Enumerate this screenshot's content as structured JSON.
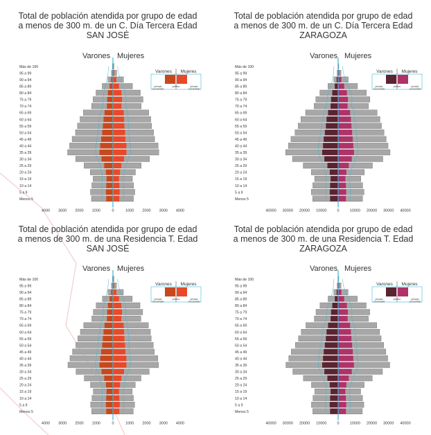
{
  "age_groups": [
    "Menos 5",
    "5 a 9",
    "10 a 14",
    "15 a 19",
    "20 a 24",
    "25 a 29",
    "30 a 34",
    "35 a 39",
    "40 a 44",
    "45 a 49",
    "50 a 54",
    "55 a 59",
    "60 a 64",
    "65 a 69",
    "70 a 74",
    "75 a 79",
    "80 a 84",
    "85 a 89",
    "90 a 94",
    "95 a 99",
    "Más de 100"
  ],
  "labels": {
    "varones": "Varones",
    "mujeres": "Mujeres",
    "privado": "privado",
    "concertado": "concertado",
    "publico": "público",
    "ticks_sj": [
      "4000",
      "3000",
      "2000",
      "1000",
      "0",
      "1000",
      "2000",
      "3000",
      "4000"
    ],
    "ticks_zg": [
      "40000",
      "30000",
      "20000",
      "10000",
      "0",
      "10000",
      "20000",
      "30000",
      "40000"
    ]
  },
  "colors": {
    "sj_male": "#c8481e",
    "sj_female": "#e8492a",
    "zg_male": "#5a2433",
    "zg_female": "#b0326a",
    "bar": "#a7a7a7",
    "bar_edge": "#6f6f6f",
    "axis": "#3cb6d3"
  },
  "chart_data": [
    {
      "type": "bar",
      "title": [
        "Total de población atendida por grupo de edad",
        "a menos de 300 m. de un C. Día Tercera Edad",
        "SAN JOSÉ"
      ],
      "xlim": [
        -4000,
        4000
      ],
      "series": [
        {
          "name": "Varones",
          "values": [
            1280,
            1340,
            1260,
            1180,
            1350,
            1720,
            2220,
            2700,
            2580,
            2430,
            2230,
            2110,
            1960,
            1760,
            1270,
            1180,
            1010,
            640,
            300,
            90,
            30
          ]
        },
        {
          "name": "Mujeres",
          "values": [
            1220,
            1300,
            1230,
            1160,
            1340,
            1680,
            2180,
            2730,
            2690,
            2480,
            2420,
            2300,
            2250,
            2130,
            1680,
            1790,
            1630,
            1160,
            630,
            220,
            60
          ]
        },
        {
          "name": "Varones público",
          "values": [
            400,
            420,
            400,
            380,
            420,
            520,
            680,
            800,
            760,
            700,
            640,
            600,
            560,
            500,
            360,
            340,
            300,
            200,
            110,
            40,
            15
          ]
        },
        {
          "name": "Mujeres público",
          "values": [
            380,
            400,
            380,
            360,
            420,
            500,
            660,
            800,
            800,
            740,
            720,
            680,
            660,
            640,
            500,
            540,
            500,
            360,
            200,
            80,
            25
          ]
        }
      ]
    },
    {
      "type": "bar",
      "title": [
        "Total de población atendida por grupo de edad",
        "a menos de 300 m. de un C. Día Tercera Edad",
        "ZARAGOZA"
      ],
      "xlim": [
        -40000,
        40000
      ],
      "series": [
        {
          "name": "Varones",
          "values": [
            15200,
            16000,
            15100,
            14000,
            16000,
            20800,
            27200,
            31300,
            29600,
            28100,
            25700,
            23800,
            22200,
            19400,
            14300,
            13300,
            10900,
            6100,
            2600,
            600,
            150
          ]
        },
        {
          "name": "Mujeres",
          "values": [
            14500,
            15400,
            14600,
            13500,
            15600,
            20400,
            26600,
            30900,
            29700,
            28600,
            27300,
            25800,
            24900,
            23200,
            18100,
            18900,
            16800,
            11500,
            6000,
            1700,
            400
          ]
        },
        {
          "name": "Varones público",
          "values": [
            4800,
            5000,
            4800,
            4500,
            5000,
            6400,
            8200,
            9500,
            9000,
            8600,
            7900,
            7300,
            6900,
            6000,
            4500,
            4200,
            3500,
            2000,
            900,
            250,
            60
          ]
        },
        {
          "name": "Mujeres público",
          "values": [
            4600,
            4800,
            4600,
            4300,
            4900,
            6300,
            8100,
            9400,
            9000,
            8700,
            8300,
            7900,
            7600,
            7100,
            5600,
            5800,
            5200,
            3600,
            1900,
            600,
            150
          ]
        }
      ]
    },
    {
      "type": "bar",
      "title": [
        "Total de población atendida por grupo de edad",
        "a menos de 300 m. de una Residencia T. Edad",
        "SAN JOSÉ"
      ],
      "xlim": [
        -4000,
        4000
      ],
      "series": [
        {
          "name": "Varones",
          "values": [
            1270,
            1330,
            1250,
            1170,
            1340,
            1710,
            2200,
            2680,
            2560,
            2410,
            2210,
            2090,
            1940,
            1740,
            1260,
            1170,
            1000,
            630,
            300,
            90,
            30
          ]
        },
        {
          "name": "Mujeres",
          "values": [
            1210,
            1290,
            1220,
            1150,
            1330,
            1670,
            2160,
            2710,
            2670,
            2460,
            2400,
            2280,
            2230,
            2110,
            1660,
            1770,
            1610,
            1150,
            620,
            210,
            60
          ]
        },
        {
          "name": "Varones público",
          "values": [
            400,
            420,
            400,
            380,
            420,
            520,
            680,
            800,
            760,
            700,
            640,
            600,
            560,
            500,
            360,
            340,
            300,
            200,
            110,
            40,
            15
          ]
        },
        {
          "name": "Mujeres público",
          "values": [
            380,
            400,
            380,
            360,
            420,
            500,
            660,
            800,
            800,
            740,
            720,
            680,
            660,
            640,
            500,
            540,
            500,
            360,
            200,
            80,
            25
          ]
        }
      ]
    },
    {
      "type": "bar",
      "title": [
        "Total de población atendida por grupo de edad",
        "a menos de 300 m. de una Residencia T. Edad",
        "ZARAGOZA"
      ],
      "xlim": [
        -40000,
        40000
      ],
      "series": [
        {
          "name": "Varones",
          "values": [
            15100,
            15900,
            15000,
            13900,
            15900,
            20700,
            27000,
            31100,
            29400,
            27900,
            25500,
            23600,
            22000,
            19200,
            14200,
            13200,
            10800,
            6000,
            2600,
            600,
            150
          ]
        },
        {
          "name": "Mujeres",
          "values": [
            14400,
            15300,
            14500,
            13400,
            15500,
            20300,
            26400,
            30700,
            29500,
            28400,
            27100,
            25600,
            24700,
            23000,
            18000,
            18800,
            16700,
            11400,
            5900,
            1700,
            400
          ]
        },
        {
          "name": "Varones público",
          "values": [
            4800,
            5000,
            4800,
            4500,
            5000,
            6400,
            8200,
            9500,
            9000,
            8600,
            7900,
            7300,
            6900,
            6000,
            4500,
            4200,
            3500,
            2000,
            900,
            250,
            60
          ]
        },
        {
          "name": "Mujeres público",
          "values": [
            4600,
            4800,
            4600,
            4300,
            4900,
            6300,
            8100,
            9400,
            9000,
            8700,
            8300,
            7900,
            7600,
            7100,
            5600,
            5800,
            5200,
            3600,
            1900,
            600,
            150
          ]
        }
      ]
    }
  ]
}
